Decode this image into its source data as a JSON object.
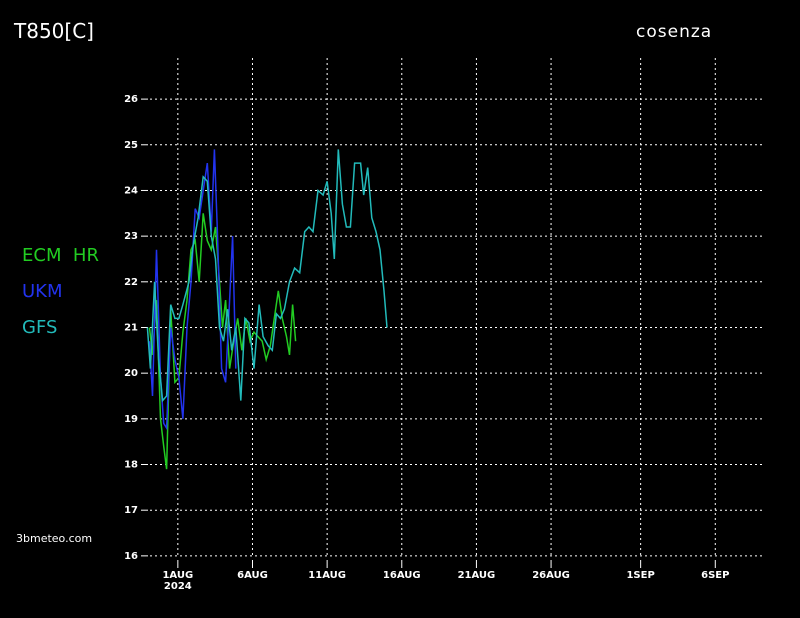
{
  "chart_data": {
    "type": "line",
    "title": "T850[C]",
    "location": "cosenza",
    "credit": "3bmeteo.com",
    "x_year_label": "2024",
    "xlim": [
      -1.2,
      41
    ],
    "ylim": [
      15.8,
      26.9
    ],
    "xticks": [
      {
        "value": 1,
        "label": "1AUG"
      },
      {
        "value": 6,
        "label": "6AUG"
      },
      {
        "value": 11,
        "label": "11AUG"
      },
      {
        "value": 16,
        "label": "16AUG"
      },
      {
        "value": 21,
        "label": "21AUG"
      },
      {
        "value": 26,
        "label": "26AUG"
      },
      {
        "value": 32,
        "label": "1SEP"
      },
      {
        "value": 37,
        "label": "6SEP"
      }
    ],
    "yticks": [
      16,
      17,
      18,
      19,
      20,
      21,
      22,
      23,
      24,
      25,
      26
    ],
    "grid": true,
    "series": [
      {
        "name": "ECM  HR",
        "color": "#22cc22",
        "x": [
          -0.9,
          -0.7,
          -0.43,
          -0.16,
          0.05,
          0.25,
          0.52,
          0.8,
          1.07,
          1.34,
          1.61,
          1.88,
          2.16,
          2.43,
          2.7,
          2.97,
          3.24,
          3.52,
          3.79,
          3.99,
          4.2,
          4.47,
          4.74,
          5.01,
          5.29,
          5.56,
          5.83,
          6.1,
          6.37,
          6.65,
          6.92,
          7.19,
          7.46,
          7.73,
          8.0,
          8.28,
          8.48,
          8.69,
          8.89
        ],
        "values": [
          21.0,
          20.4,
          21.6,
          19.0,
          18.4,
          17.9,
          21.4,
          19.8,
          19.9,
          20.9,
          21.6,
          22.7,
          22.9,
          22.0,
          23.5,
          22.9,
          22.7,
          23.2,
          22.0,
          21.0,
          21.6,
          20.1,
          20.7,
          21.2,
          20.5,
          21.2,
          20.7,
          20.9,
          20.8,
          20.7,
          20.3,
          20.6,
          21.2,
          21.8,
          21.2,
          20.8,
          20.4,
          21.5,
          20.7
        ]
      },
      {
        "name": "UKM",
        "color": "#2233ee",
        "x": [
          -0.9,
          -0.7,
          -0.43,
          -0.16,
          0.05,
          0.25,
          0.52,
          0.8,
          1.07,
          1.34,
          1.61,
          1.88,
          2.16,
          2.43,
          2.7,
          2.97,
          3.24,
          3.45,
          3.65,
          3.93,
          4.2,
          4.47,
          4.67,
          4.88
        ],
        "values": [
          20.7,
          19.5,
          22.7,
          19.9,
          18.9,
          18.8,
          21.0,
          20.3,
          19.9,
          19.0,
          21.0,
          22.0,
          23.6,
          23.4,
          24.0,
          24.6,
          23.1,
          24.9,
          23.1,
          20.1,
          19.8,
          21.6,
          23.0,
          20.1
        ]
      },
      {
        "name": "GFS",
        "color": "#22bbbb",
        "x": [
          -1.04,
          -0.84,
          -0.56,
          -0.29,
          -0.02,
          0.25,
          0.52,
          0.8,
          1.07,
          1.34,
          1.75,
          2.02,
          2.36,
          2.7,
          2.97,
          3.24,
          3.52,
          3.79,
          4.06,
          4.33,
          4.61,
          4.88,
          5.22,
          5.49,
          5.76,
          6.1,
          6.44,
          6.71,
          7.05,
          7.33,
          7.6,
          7.87,
          8.14,
          8.48,
          8.82,
          9.16,
          9.5,
          9.78,
          10.05,
          10.39,
          10.73,
          11.0,
          11.27,
          11.48,
          11.75,
          12.02,
          12.29,
          12.56,
          12.84,
          13.24,
          13.45,
          13.72,
          13.99,
          14.27,
          14.54,
          14.81,
          15.01
        ],
        "values": [
          21.0,
          20.1,
          22.0,
          20.3,
          19.4,
          19.5,
          21.5,
          21.2,
          21.2,
          21.5,
          22.0,
          22.8,
          23.4,
          24.3,
          24.2,
          23.0,
          22.5,
          21.0,
          20.7,
          21.4,
          20.5,
          21.0,
          19.4,
          21.2,
          21.1,
          20.1,
          21.5,
          20.8,
          20.6,
          20.5,
          21.3,
          21.2,
          21.4,
          22.0,
          22.3,
          22.2,
          23.1,
          23.2,
          23.1,
          24.0,
          23.9,
          24.2,
          23.5,
          22.5,
          24.9,
          23.7,
          23.2,
          23.2,
          24.6,
          24.6,
          23.9,
          24.5,
          23.4,
          23.1,
          22.7,
          21.8,
          21.0
        ]
      }
    ]
  }
}
